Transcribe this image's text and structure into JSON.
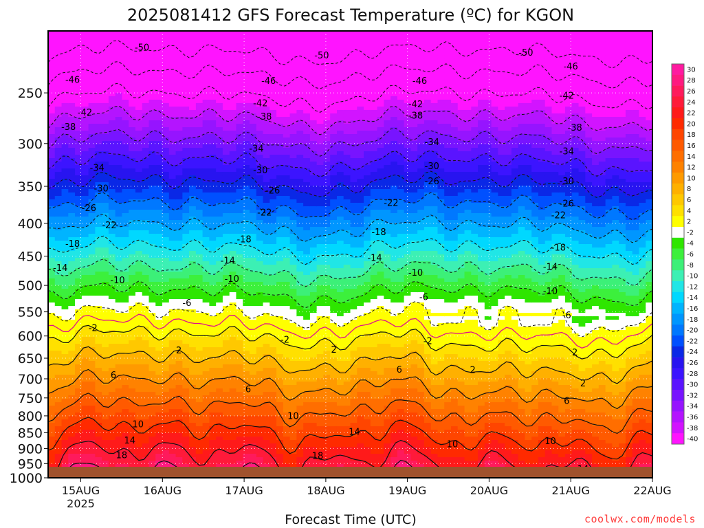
{
  "title": "2025081412 GFS Forecast Temperature (ºC) for KGON",
  "credit": "coolwx.com/models",
  "chart_data": {
    "type": "heatmap",
    "title": "2025081412 GFS Forecast Temperature (ºC) for KGON",
    "xlabel": "Forecast Time (UTC)",
    "ylabel": "",
    "x_ticks": [
      "15AUG",
      "16AUG",
      "17AUG",
      "18AUG",
      "19AUG",
      "20AUG",
      "21AUG",
      "22AUG"
    ],
    "x_year_label": "2025",
    "xlim_days": [
      14.6,
      22.0
    ],
    "y_ticks": [
      250,
      300,
      350,
      400,
      450,
      500,
      550,
      600,
      650,
      700,
      750,
      800,
      850,
      900,
      950,
      1000
    ],
    "ylim_hpa": [
      200,
      1000
    ],
    "y_scale": "log-pressure (inverted)",
    "grid": true,
    "colorbar": {
      "levels": [
        30,
        28,
        26,
        24,
        22,
        20,
        18,
        16,
        14,
        12,
        10,
        8,
        6,
        4,
        2,
        -2,
        -4,
        -6,
        -8,
        -10,
        -12,
        -14,
        -16,
        -18,
        -20,
        -22,
        -24,
        -26,
        -28,
        -30,
        -32,
        -34,
        -36,
        -38,
        -40
      ],
      "labels": [
        "30",
        "28",
        "26",
        "24",
        "22",
        "20",
        "18",
        "16",
        "14",
        "12",
        "10",
        "8",
        "6",
        "4",
        "2",
        "-2",
        "-4",
        "-6",
        "-8",
        "-10",
        "-12",
        "-14",
        "-16",
        "-18",
        "-20",
        "-22",
        "-24",
        "-26",
        "-28",
        "-30",
        "-32",
        "-34",
        "-36",
        "-38",
        "-40"
      ],
      "colors": [
        "#ff1aa0",
        "#ff1a80",
        "#ff1a5c",
        "#ff1a3a",
        "#ff1a1a",
        "#ff2a00",
        "#ff4500",
        "#ff5a00",
        "#ff6e00",
        "#ff8200",
        "#ff9a00",
        "#ffb000",
        "#ffc800",
        "#ffe000",
        "#ffff00",
        "#ffffff",
        "#2ee600",
        "#3cf03c",
        "#3cf078",
        "#3cf0b4",
        "#20e6e6",
        "#00d8ff",
        "#00b4ff",
        "#0096ff",
        "#0078ff",
        "#0050ff",
        "#0a28e6",
        "#2814f0",
        "#3c14ff",
        "#5a14ff",
        "#7814ff",
        "#9614ff",
        "#b414ff",
        "#d214ff",
        "#ff14ff"
      ]
    },
    "contour_labels": [
      {
        "t": 15.75,
        "p": 212,
        "v": "-50"
      },
      {
        "t": 17.95,
        "p": 218,
        "v": "-50"
      },
      {
        "t": 20.45,
        "p": 216,
        "v": "-50"
      },
      {
        "t": 14.9,
        "p": 238,
        "v": "-46"
      },
      {
        "t": 17.3,
        "p": 239,
        "v": "-46"
      },
      {
        "t": 19.15,
        "p": 239,
        "v": "-46"
      },
      {
        "t": 21.0,
        "p": 227,
        "v": "-46"
      },
      {
        "t": 15.05,
        "p": 268,
        "v": "-42"
      },
      {
        "t": 17.2,
        "p": 259,
        "v": "-42"
      },
      {
        "t": 19.1,
        "p": 260,
        "v": "-42"
      },
      {
        "t": 20.95,
        "p": 252,
        "v": "-42"
      },
      {
        "t": 14.85,
        "p": 282,
        "v": "-38"
      },
      {
        "t": 17.25,
        "p": 272,
        "v": "-38"
      },
      {
        "t": 19.1,
        "p": 271,
        "v": "-38"
      },
      {
        "t": 21.05,
        "p": 283,
        "v": "-38"
      },
      {
        "t": 15.2,
        "p": 327,
        "v": "-34"
      },
      {
        "t": 17.15,
        "p": 305,
        "v": "-34"
      },
      {
        "t": 19.3,
        "p": 298,
        "v": "-34"
      },
      {
        "t": 20.95,
        "p": 308,
        "v": "-34"
      },
      {
        "t": 15.25,
        "p": 352,
        "v": "-30"
      },
      {
        "t": 17.2,
        "p": 330,
        "v": "-30"
      },
      {
        "t": 19.3,
        "p": 325,
        "v": "-30"
      },
      {
        "t": 20.95,
        "p": 343,
        "v": "-30"
      },
      {
        "t": 15.1,
        "p": 378,
        "v": "-26"
      },
      {
        "t": 17.35,
        "p": 355,
        "v": "-26"
      },
      {
        "t": 19.3,
        "p": 343,
        "v": "-26"
      },
      {
        "t": 20.95,
        "p": 372,
        "v": "-26"
      },
      {
        "t": 15.35,
        "p": 402,
        "v": "-22"
      },
      {
        "t": 17.25,
        "p": 384,
        "v": "-22"
      },
      {
        "t": 18.8,
        "p": 371,
        "v": "-22"
      },
      {
        "t": 20.85,
        "p": 388,
        "v": "-22"
      },
      {
        "t": 14.9,
        "p": 430,
        "v": "-18"
      },
      {
        "t": 17.0,
        "p": 423,
        "v": "-18"
      },
      {
        "t": 18.65,
        "p": 412,
        "v": "-18"
      },
      {
        "t": 20.85,
        "p": 436,
        "v": "-18"
      },
      {
        "t": 14.75,
        "p": 469,
        "v": "-14"
      },
      {
        "t": 16.8,
        "p": 457,
        "v": "-14"
      },
      {
        "t": 18.6,
        "p": 452,
        "v": "-14"
      },
      {
        "t": 20.75,
        "p": 467,
        "v": "-14"
      },
      {
        "t": 15.45,
        "p": 490,
        "v": "-10"
      },
      {
        "t": 16.85,
        "p": 488,
        "v": "-10"
      },
      {
        "t": 19.1,
        "p": 477,
        "v": "-10"
      },
      {
        "t": 20.75,
        "p": 510,
        "v": "-10"
      },
      {
        "t": 16.3,
        "p": 532,
        "v": "-6"
      },
      {
        "t": 19.2,
        "p": 521,
        "v": "-6"
      },
      {
        "t": 20.95,
        "p": 556,
        "v": "-6"
      },
      {
        "t": 15.15,
        "p": 582,
        "v": "-2"
      },
      {
        "t": 17.5,
        "p": 607,
        "v": "-2"
      },
      {
        "t": 19.25,
        "p": 610,
        "v": "-2"
      },
      {
        "t": 16.2,
        "p": 631,
        "v": "2"
      },
      {
        "t": 18.1,
        "p": 629,
        "v": "2"
      },
      {
        "t": 19.8,
        "p": 677,
        "v": "2"
      },
      {
        "t": 21.15,
        "p": 711,
        "v": "2"
      },
      {
        "t": 21.05,
        "p": 636,
        "v": "2"
      },
      {
        "t": 15.4,
        "p": 690,
        "v": "6"
      },
      {
        "t": 17.05,
        "p": 726,
        "v": "6"
      },
      {
        "t": 18.9,
        "p": 676,
        "v": "6"
      },
      {
        "t": 20.95,
        "p": 757,
        "v": "6"
      },
      {
        "t": 15.7,
        "p": 823,
        "v": "10"
      },
      {
        "t": 17.6,
        "p": 799,
        "v": "10"
      },
      {
        "t": 19.55,
        "p": 885,
        "v": "10"
      },
      {
        "t": 20.75,
        "p": 875,
        "v": "10"
      },
      {
        "t": 15.6,
        "p": 873,
        "v": "14"
      },
      {
        "t": 18.35,
        "p": 846,
        "v": "14"
      },
      {
        "t": 19.15,
        "p": 985,
        "v": "14"
      },
      {
        "t": 21.15,
        "p": 967,
        "v": "14"
      },
      {
        "t": 15.5,
        "p": 920,
        "v": "18"
      },
      {
        "t": 17.9,
        "p": 923,
        "v": "18"
      }
    ]
  }
}
